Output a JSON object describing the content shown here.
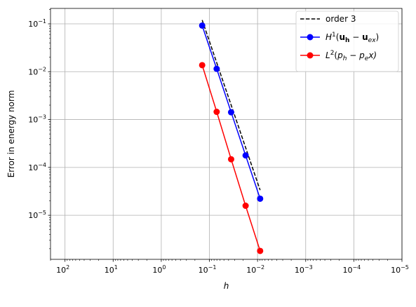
{
  "chart_data": {
    "type": "line",
    "title": "",
    "xlabel": "h",
    "ylabel": "Error in energy norm",
    "xscale": "log",
    "yscale": "log",
    "x_inverted": true,
    "xlim": [
      200,
      1e-05
    ],
    "ylim": [
      1.2e-06,
      0.21
    ],
    "grid": true,
    "legend_position": "top-right",
    "x_ticks": [
      {
        "value": 100,
        "base": "10",
        "exp": "2"
      },
      {
        "value": 10,
        "base": "10",
        "exp": "1"
      },
      {
        "value": 1,
        "base": "10",
        "exp": "0"
      },
      {
        "value": 0.1,
        "base": "10",
        "exp": "−1"
      },
      {
        "value": 0.01,
        "base": "10",
        "exp": "−2"
      },
      {
        "value": 0.001,
        "base": "10",
        "exp": "−3"
      },
      {
        "value": 0.0001,
        "base": "10",
        "exp": "−4"
      },
      {
        "value": 1e-05,
        "base": "10",
        "exp": "−5"
      }
    ],
    "y_ticks": [
      {
        "value": 0.1,
        "base": "10",
        "exp": "−1"
      },
      {
        "value": 0.01,
        "base": "10",
        "exp": "−2"
      },
      {
        "value": 0.001,
        "base": "10",
        "exp": "−3"
      },
      {
        "value": 0.0001,
        "base": "10",
        "exp": "−4"
      },
      {
        "value": 1e-05,
        "base": "10",
        "exp": "−5"
      }
    ],
    "series": [
      {
        "name": "order 3",
        "color": "#000000",
        "style": "dashed",
        "marker": false,
        "x": [
          0.1414,
          0.00884
        ],
        "y": [
          0.12,
          3.35e-05
        ]
      },
      {
        "name_parts": [
          "H",
          "1",
          "(",
          "u",
          "h",
          " − ",
          "u",
          "ex",
          ")"
        ],
        "color": "#0000ff",
        "style": "solid",
        "marker": true,
        "x": [
          0.1414,
          0.0707,
          0.0354,
          0.0177,
          0.00884
        ],
        "y": [
          0.092,
          0.0115,
          0.00142,
          0.000178,
          2.22e-05
        ]
      },
      {
        "name_parts": [
          "L",
          "2",
          "(",
          "p",
          "h",
          " − ",
          "p",
          "e",
          "x)"
        ],
        "color": "#ff0000",
        "style": "solid",
        "marker": true,
        "x": [
          0.1414,
          0.0707,
          0.0354,
          0.0177,
          0.00884
        ],
        "y": [
          0.0137,
          0.00145,
          0.000148,
          1.58e-05,
          1.8e-06
        ]
      }
    ]
  }
}
